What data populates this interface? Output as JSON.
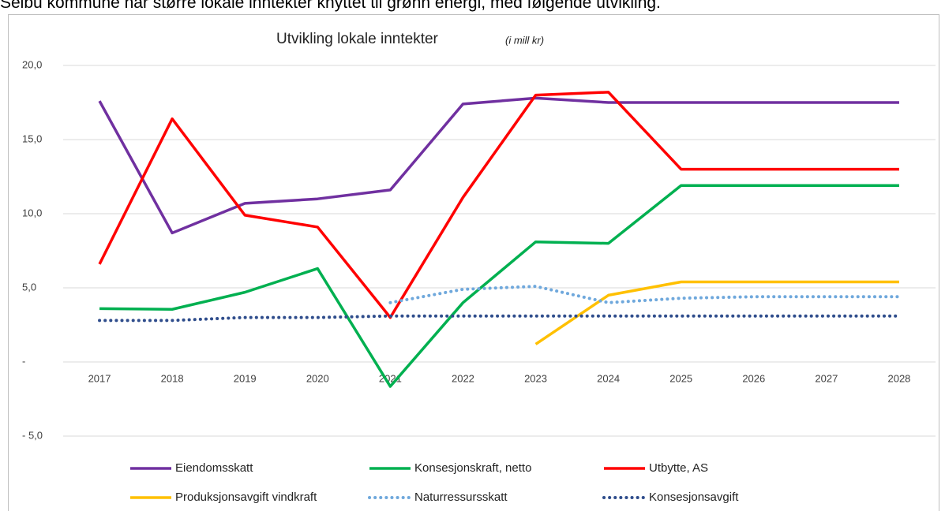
{
  "caption": "Selbu kommune har større lokale inntekter knyttet til grønn energi, med følgende utvikling.",
  "chart_data": {
    "type": "line",
    "title": "Utvikling lokale inntekter",
    "title_note": "(i mill kr)",
    "categories": [
      "2017",
      "2018",
      "2019",
      "2020",
      "2021",
      "2022",
      "2023",
      "2024",
      "2025",
      "2026",
      "2027",
      "2028"
    ],
    "ylim": [
      -5,
      20
    ],
    "yticks": [
      {
        "value": -5,
        "label": "- 5,0"
      },
      {
        "value": 0,
        "label": "-"
      },
      {
        "value": 5,
        "label": "5,0"
      },
      {
        "value": 10,
        "label": "10,0"
      },
      {
        "value": 15,
        "label": "15,0"
      },
      {
        "value": 20,
        "label": "20,0"
      }
    ],
    "grid": true,
    "legend": "bottom",
    "series": [
      {
        "name": "Eiendomsskatt",
        "color": "#7030a0",
        "dash": "solid",
        "values": [
          17.6,
          8.7,
          10.7,
          11.0,
          11.6,
          17.4,
          17.8,
          17.5,
          17.5,
          17.5,
          17.5,
          17.5
        ]
      },
      {
        "name": "Konsesjonskraft, netto",
        "color": "#00b050",
        "dash": "solid",
        "values": [
          3.6,
          3.55,
          4.7,
          6.3,
          -1.65,
          4.0,
          8.1,
          8.0,
          11.9,
          11.9,
          11.9,
          11.9
        ]
      },
      {
        "name": "Utbytte, AS",
        "color": "#ff0000",
        "dash": "solid",
        "values": [
          6.6,
          16.4,
          9.9,
          9.1,
          3.0,
          11.1,
          18.0,
          18.2,
          13.0,
          13.0,
          13.0,
          13.0
        ]
      },
      {
        "name": "Produksjonsavgift vindkraft",
        "color": "#ffc000",
        "dash": "solid",
        "values": [
          null,
          null,
          null,
          null,
          null,
          null,
          1.2,
          4.5,
          5.4,
          5.4,
          5.4,
          5.4
        ]
      },
      {
        "name": "Naturressursskatt",
        "color": "#6fa8dc",
        "dash": "dotted",
        "values": [
          null,
          null,
          null,
          null,
          4.0,
          4.9,
          5.1,
          4.0,
          4.3,
          4.4,
          4.4,
          4.4
        ]
      },
      {
        "name": "Konsesjonsavgift",
        "color": "#2f4d8c",
        "dash": "dotted",
        "values": [
          2.8,
          2.8,
          3.0,
          3.0,
          3.1,
          3.1,
          3.1,
          3.1,
          3.1,
          3.1,
          3.1,
          3.1
        ]
      }
    ]
  }
}
